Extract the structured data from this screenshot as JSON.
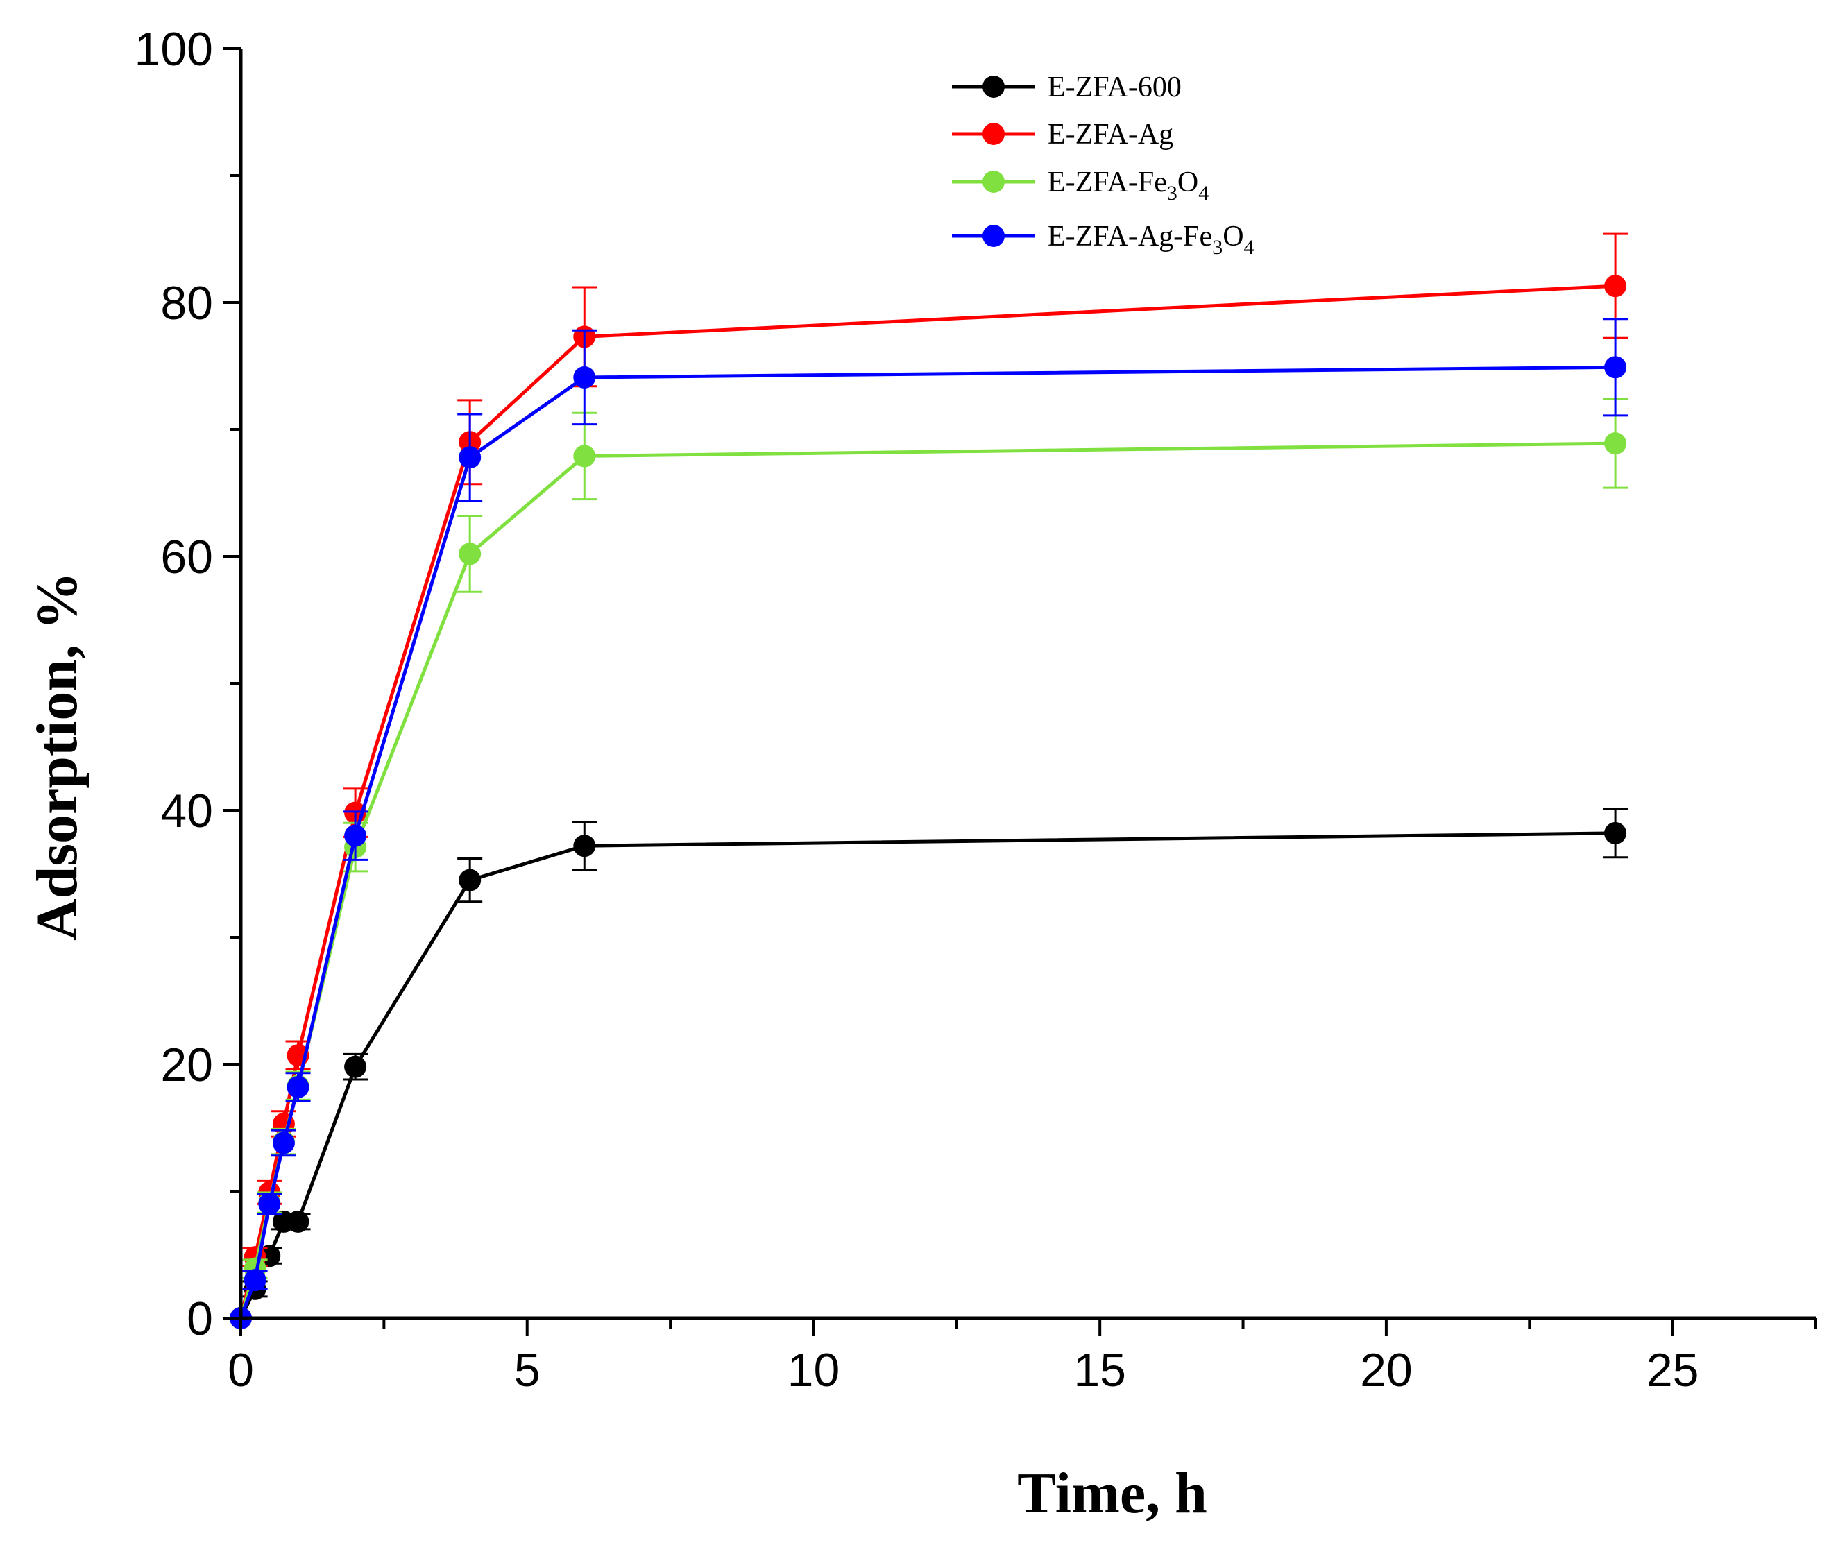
{
  "chart_data": {
    "type": "line",
    "title": "",
    "xlabel": "Time, h",
    "ylabel": "Adsorption, %",
    "xlim": [
      0,
      27.5
    ],
    "ylim": [
      0,
      100
    ],
    "x_ticks": [
      0,
      5,
      10,
      15,
      20,
      25
    ],
    "y_ticks": [
      0,
      20,
      40,
      60,
      80,
      100
    ],
    "x": [
      0,
      0.25,
      0.5,
      0.75,
      1,
      2,
      4,
      6,
      24
    ],
    "legend_position": "top-right",
    "series": [
      {
        "name": "E-ZFA-600",
        "legend": {
          "base": "E-ZFA-600",
          "sub": "",
          "tail": "",
          "sub2": ""
        },
        "color": "#000000",
        "values": [
          0,
          2.3,
          4.9,
          7.6,
          7.6,
          19.8,
          34.5,
          37.2,
          38.2
        ],
        "errors": [
          0,
          0.6,
          0.6,
          0.6,
          0.6,
          1.0,
          1.7,
          1.9,
          1.9
        ]
      },
      {
        "name": "E-ZFA-Ag",
        "legend": {
          "base": "E-ZFA-Ag",
          "sub": "",
          "tail": "",
          "sub2": ""
        },
        "color": "#ff0000",
        "values": [
          0,
          4.8,
          9.9,
          15.3,
          20.7,
          39.8,
          69.0,
          77.3,
          81.3
        ],
        "errors": [
          0,
          0.7,
          0.9,
          1.0,
          1.1,
          1.9,
          3.3,
          3.9,
          4.1
        ]
      },
      {
        "name": "E-ZFA-Fe3O4",
        "legend": {
          "base": "E-ZFA-Fe",
          "sub": "3",
          "tail": "O",
          "sub2": "4"
        },
        "color": "#80e040",
        "values": [
          0,
          3.9,
          9.1,
          13.9,
          18.3,
          37.1,
          60.2,
          67.9,
          68.9
        ],
        "errors": [
          0,
          0.7,
          0.8,
          1.0,
          1.1,
          1.9,
          3.0,
          3.4,
          3.5
        ]
      },
      {
        "name": "E-ZFA-Ag-Fe3O4",
        "legend": {
          "base": "E-ZFA-Ag-Fe",
          "sub": "3",
          "tail": "O",
          "sub2": "4"
        },
        "color": "#0000ff",
        "values": [
          0,
          3.0,
          9.0,
          13.8,
          18.2,
          38.0,
          67.8,
          74.1,
          74.9
        ],
        "errors": [
          0,
          0.7,
          0.8,
          1.0,
          1.1,
          1.9,
          3.4,
          3.7,
          3.8
        ]
      }
    ]
  }
}
